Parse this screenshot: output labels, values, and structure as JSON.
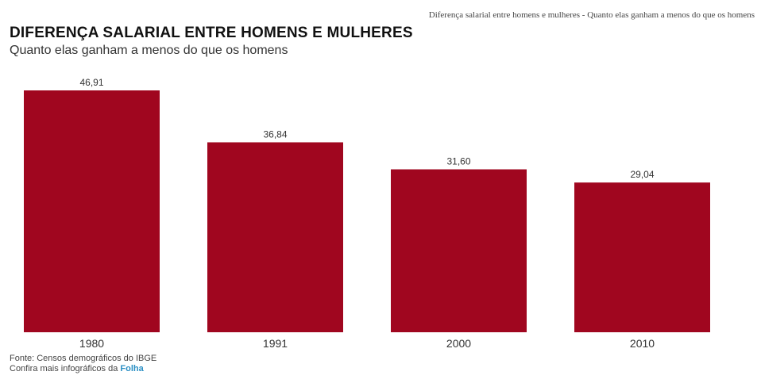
{
  "page_header": "Diferença salarial entre homens e mulheres - Quanto elas ganham a menos do que os homens",
  "chart_data": {
    "type": "bar",
    "title": "DIFERENÇA SALARIAL ENTRE HOMENS E MULHERES",
    "subtitle": "Quanto elas ganham a menos do que os homens",
    "categories": [
      "1980",
      "1991",
      "2000",
      "2010"
    ],
    "values": [
      46.91,
      36.84,
      31.6,
      29.04
    ],
    "value_labels": [
      "46,91",
      "36,84",
      "31,60",
      "29,04"
    ],
    "ylim": [
      0,
      50
    ],
    "grid": false,
    "legend": "none",
    "bar_color": "#a0061f"
  },
  "footer": {
    "source": "Fonte: Censos demográficos do IBGE",
    "more_prefix": "Confira mais infográficos da ",
    "more_link": "Folha"
  },
  "colors": {
    "bar": "#a0061f",
    "link": "#2b8fc4"
  }
}
